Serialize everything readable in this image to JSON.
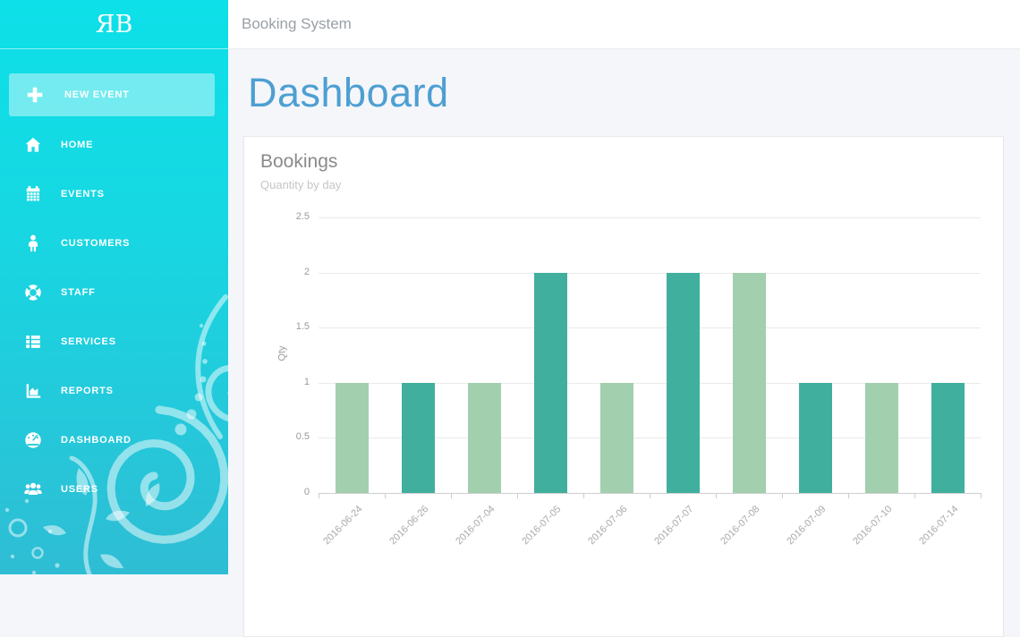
{
  "app": {
    "logo": "ЯB",
    "header_title": "Booking System"
  },
  "sidebar": {
    "new_event": {
      "label": "NEW EVENT",
      "icon": "plus-icon"
    },
    "items": [
      {
        "label": "HOME",
        "icon": "home-icon"
      },
      {
        "label": "EVENTS",
        "icon": "calendar-icon"
      },
      {
        "label": "CUSTOMERS",
        "icon": "customer-icon"
      },
      {
        "label": "STAFF",
        "icon": "life-ring-icon"
      },
      {
        "label": "SERVICES",
        "icon": "services-icon"
      },
      {
        "label": "REPORTS",
        "icon": "report-chart-icon"
      },
      {
        "label": "DASHBOARD",
        "icon": "gauge-icon"
      },
      {
        "label": "USERS",
        "icon": "users-icon"
      }
    ]
  },
  "main": {
    "page_title": "Dashboard",
    "card": {
      "title": "Bookings",
      "subtitle": "Quantity by day"
    }
  },
  "chart_data": {
    "type": "bar",
    "title": "Bookings",
    "subtitle": "Quantity by day",
    "categories": [
      "2016-06-24",
      "2016-06-26",
      "2016-07-04",
      "2016-07-05",
      "2016-07-06",
      "2016-07-07",
      "2016-07-08",
      "2016-07-09",
      "2016-07-10",
      "2016-07-14"
    ],
    "values": [
      1,
      1,
      1,
      2,
      1,
      2,
      2,
      1,
      1,
      1
    ],
    "bar_colors": [
      "#a2cfad",
      "#41af9e",
      "#a2cfad",
      "#41af9e",
      "#a2cfad",
      "#41af9e",
      "#a2cfad",
      "#41af9e",
      "#a2cfad",
      "#41af9e"
    ],
    "xlabel": "",
    "ylabel": "Qty",
    "ylim": [
      0,
      2.5
    ],
    "yticks": [
      0,
      0.5,
      1,
      1.5,
      2,
      2.5
    ],
    "grid": true,
    "legend": "none"
  },
  "colors": {
    "sidebar_top": "#0de0e8",
    "sidebar_bottom": "#2fbdd4",
    "accent_blue": "#4d9fd2",
    "bar_teal": "#41af9e",
    "bar_green": "#a2cfad"
  }
}
